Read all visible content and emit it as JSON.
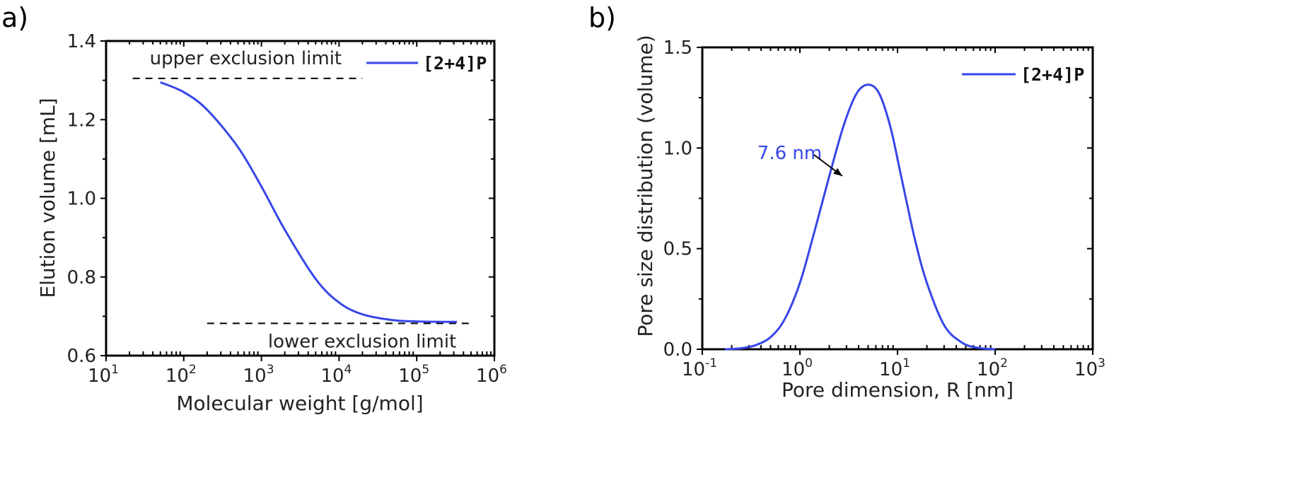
{
  "colors": {
    "series": "#3646e8",
    "axis": "#000000",
    "text": "#222222"
  },
  "chart_data": [
    {
      "panel": "a)",
      "type": "line",
      "xscale": "log",
      "xlabel": "Molecular weight [g/mol]",
      "ylabel": "Elution volume [mL]",
      "xlim": [
        10,
        1000000
      ],
      "ylim": [
        0.6,
        1.4
      ],
      "grid": false,
      "legend": {
        "label": "[2+4]P",
        "placement": "top-right"
      },
      "yticks": [
        {
          "value": 0.6,
          "label": "0.6"
        },
        {
          "value": 0.8,
          "label": "0.8"
        },
        {
          "value": 1.0,
          "label": "1.0"
        },
        {
          "value": 1.2,
          "label": "1.2"
        },
        {
          "value": 1.4,
          "label": "1.4"
        }
      ],
      "xticks": [
        {
          "value": 10,
          "base": "10",
          "exp": "1"
        },
        {
          "value": 100,
          "base": "10",
          "exp": "2"
        },
        {
          "value": 1000,
          "base": "10",
          "exp": "3"
        },
        {
          "value": 10000,
          "base": "10",
          "exp": "4"
        },
        {
          "value": 100000,
          "base": "10",
          "exp": "5"
        },
        {
          "value": 1000000,
          "base": "10",
          "exp": "6"
        }
      ],
      "series": [
        {
          "name": "[2+4]P",
          "x": [
            50,
            100,
            200,
            500,
            1000,
            2000,
            5000,
            10000,
            20000,
            50000,
            100000,
            200000,
            330000
          ],
          "y": [
            1.295,
            1.27,
            1.225,
            1.13,
            1.03,
            0.92,
            0.795,
            0.735,
            0.705,
            0.69,
            0.687,
            0.686,
            0.686
          ]
        }
      ],
      "reference_lines": [
        {
          "label": "upper exclusion limit",
          "y": 1.305,
          "x_from": 22,
          "x_to": 20000
        },
        {
          "label": "lower exclusion limit",
          "y": 0.682,
          "x_from": 200,
          "x_to": 500000
        }
      ]
    },
    {
      "panel": "b)",
      "type": "line",
      "xscale": "log",
      "xlabel": "Pore dimension, R [nm]",
      "ylabel": "Pore size distribution (volume)",
      "xlim": [
        0.1,
        1000
      ],
      "ylim": [
        0.0,
        1.5
      ],
      "grid": false,
      "legend": {
        "label": "[2+4]P",
        "placement": "top-right"
      },
      "yticks": [
        {
          "value": 0.0,
          "label": "0.0"
        },
        {
          "value": 0.5,
          "label": "0.5"
        },
        {
          "value": 1.0,
          "label": "1.0"
        },
        {
          "value": 1.5,
          "label": "1.5"
        }
      ],
      "xticks": [
        {
          "value": 0.1,
          "base": "10",
          "exp": "-1"
        },
        {
          "value": 1,
          "base": "10",
          "exp": "0"
        },
        {
          "value": 10,
          "base": "10",
          "exp": "1"
        },
        {
          "value": 100,
          "base": "10",
          "exp": "2"
        },
        {
          "value": 1000,
          "base": "10",
          "exp": "3"
        }
      ],
      "series": [
        {
          "name": "[2+4]P",
          "x": [
            0.17,
            0.25,
            0.35,
            0.5,
            0.7,
            1.0,
            1.4,
            2.0,
            2.8,
            3.8,
            5.0,
            6.5,
            8.5,
            11,
            15,
            20,
            30,
            45,
            65,
            100
          ],
          "y": [
            0.0,
            0.005,
            0.02,
            0.06,
            0.15,
            0.33,
            0.58,
            0.86,
            1.11,
            1.27,
            1.315,
            1.27,
            1.1,
            0.85,
            0.55,
            0.33,
            0.12,
            0.035,
            0.008,
            0.0
          ]
        }
      ],
      "annotation": {
        "text": "7.6 nm",
        "point_x": 2.9,
        "point_y": 0.84
      }
    }
  ]
}
